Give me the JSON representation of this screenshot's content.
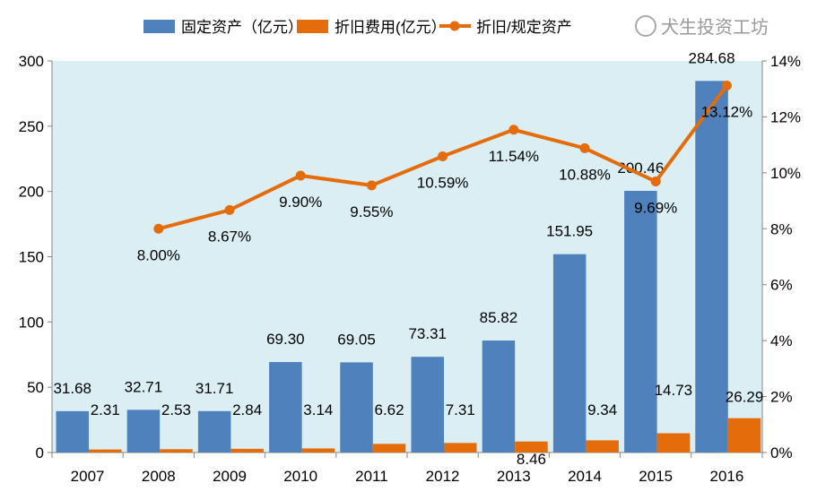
{
  "chart_data": {
    "type": "bar+line",
    "categories": [
      "2007",
      "2008",
      "2009",
      "2010",
      "2011",
      "2012",
      "2013",
      "2014",
      "2015",
      "2016"
    ],
    "series": [
      {
        "name": "固定资产（亿元）",
        "type": "bar",
        "axis": "left",
        "color": "#4f81bd",
        "values": [
          31.68,
          32.71,
          31.71,
          69.3,
          69.05,
          73.31,
          85.82,
          151.95,
          200.46,
          284.68
        ],
        "labels": [
          "31.68",
          "32.71",
          "31.71",
          "69.30",
          "69.05",
          "73.31",
          "85.82",
          "151.95",
          "200.46",
          "284.68"
        ]
      },
      {
        "name": "折旧费用(亿元）",
        "type": "bar",
        "axis": "left",
        "color": "#e46c0a",
        "values": [
          2.31,
          2.53,
          2.84,
          3.14,
          6.62,
          7.31,
          8.46,
          9.34,
          14.73,
          26.29
        ],
        "labels": [
          "2.31",
          "2.53",
          "2.84",
          "3.14",
          "6.62",
          "7.31",
          "8.46",
          "9.34",
          "14.73",
          "26.29"
        ]
      },
      {
        "name": "折旧/规定资产",
        "type": "line",
        "axis": "right",
        "color": "#e46c0a",
        "values": [
          null,
          8.0,
          8.67,
          9.9,
          9.55,
          10.59,
          11.54,
          10.88,
          9.69,
          13.12
        ],
        "labels": [
          "",
          "8.00%",
          "8.67%",
          "9.90%",
          "9.55%",
          "10.59%",
          "11.54%",
          "10.88%",
          "9.69%",
          "13.12%"
        ]
      }
    ],
    "left_axis": {
      "ylim": [
        0,
        300
      ],
      "ticks": [
        "0",
        "50",
        "100",
        "150",
        "200",
        "250",
        "300"
      ]
    },
    "right_axis": {
      "ylim": [
        0,
        14
      ],
      "unit": "%",
      "ticks": [
        "0%",
        "2%",
        "4%",
        "6%",
        "8%",
        "10%",
        "12%",
        "14%"
      ]
    },
    "legend_position": "top",
    "grid": false,
    "plot_background": "#dbeef4"
  },
  "watermark": "犬生投资工坊"
}
